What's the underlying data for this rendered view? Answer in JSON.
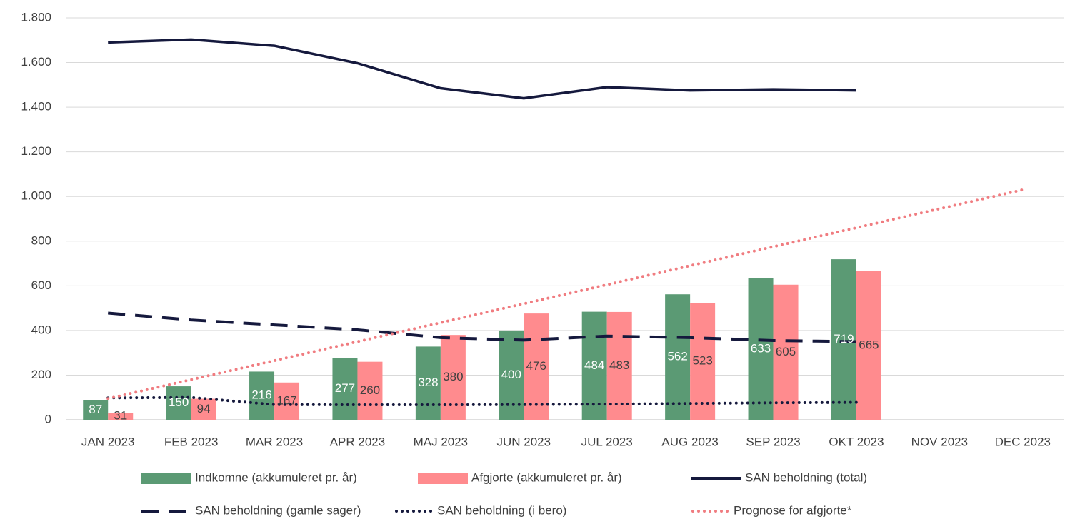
{
  "chart_data": {
    "type": "bar",
    "categories": [
      "JAN 2023",
      "FEB 2023",
      "MAR 2023",
      "APR 2023",
      "MAJ 2023",
      "JUN 2023",
      "JUL 2023",
      "AUG 2023",
      "SEP 2023",
      "OKT 2023",
      "NOV 2023",
      "DEC 2023"
    ],
    "ylim": [
      0,
      1800
    ],
    "yticks": [
      0,
      200,
      400,
      600,
      800,
      {
        "value": 1000,
        "label": "1.000"
      },
      {
        "value": 1200,
        "label": "1.200"
      },
      {
        "value": 1400,
        "label": "1.400"
      },
      {
        "value": 1600,
        "label": "1.600"
      },
      {
        "value": 1800,
        "label": "1.800"
      }
    ],
    "grid": true,
    "series": [
      {
        "name": "Indkomne (akkumuleret pr. år)",
        "type": "bar",
        "color": "#5b9a74",
        "label_color": "#ffffff",
        "values": [
          87,
          150,
          216,
          277,
          328,
          400,
          484,
          562,
          633,
          719,
          null,
          null
        ]
      },
      {
        "name": "Afgjorte (akkumuleret pr. år)",
        "type": "bar",
        "color": "#ff8b8e",
        "label_color": "#404040",
        "values": [
          31,
          94,
          167,
          260,
          380,
          476,
          483,
          523,
          605,
          665,
          null,
          null
        ]
      },
      {
        "name": "SAN beholdning (total)",
        "type": "line",
        "style": "solid",
        "color": "#15193d",
        "values": [
          1690,
          1703,
          1675,
          1597,
          1485,
          1440,
          1490,
          1475,
          1480,
          1475,
          null,
          null
        ]
      },
      {
        "name": "SAN beholdning (gamle sager)",
        "type": "line",
        "style": "dashed",
        "color": "#15193d",
        "values": [
          478,
          447,
          425,
          403,
          368,
          357,
          375,
          368,
          355,
          350,
          null,
          null
        ]
      },
      {
        "name": "SAN beholdning (i bero)",
        "type": "line",
        "style": "dotted",
        "color": "#15193d",
        "values": [
          98,
          100,
          68,
          67,
          67,
          68,
          70,
          73,
          76,
          78,
          null,
          null
        ]
      },
      {
        "name": "Prognose for afgjorte*",
        "type": "line",
        "style": "dotted",
        "color": "#f07c80",
        "values": [
          95,
          180,
          265,
          350,
          435,
          520,
          605,
          690,
          775,
          860,
          945,
          1030
        ]
      }
    ]
  }
}
